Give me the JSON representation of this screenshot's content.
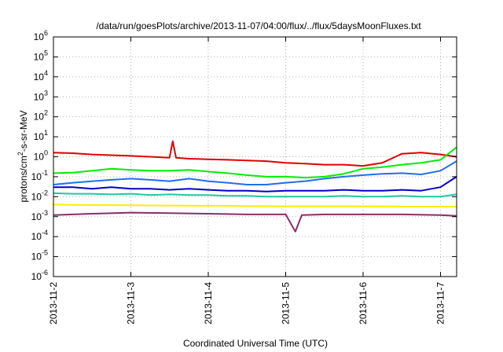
{
  "chart_data": {
    "type": "line",
    "title": "/data/run/goesPlots/archive/2013-11-07/04:00/flux/../flux/5daysMoonFluxes.txt",
    "xlabel": "Coordinated Universal Time (UTC)",
    "ylabel": "protons/cm2-s-sr-MeV",
    "ylabel_parts": {
      "before": "protons/cm",
      "sup": "2",
      "after": "-s-sr-MeV"
    },
    "y_scale": "log",
    "ylim_exp": [
      -6,
      6
    ],
    "y_ticks": [
      {
        "base": "10",
        "exp": "6",
        "value": 6
      },
      {
        "base": "10",
        "exp": "5",
        "value": 5
      },
      {
        "base": "10",
        "exp": "4",
        "value": 4
      },
      {
        "base": "10",
        "exp": "3",
        "value": 3
      },
      {
        "base": "10",
        "exp": "2",
        "value": 2
      },
      {
        "base": "10",
        "exp": "1",
        "value": 1
      },
      {
        "base": "10",
        "exp": "0",
        "value": 0
      },
      {
        "base": "10",
        "exp": "-1",
        "value": -1
      },
      {
        "base": "10",
        "exp": "-2",
        "value": -2
      },
      {
        "base": "10",
        "exp": "-3",
        "value": -3
      },
      {
        "base": "10",
        "exp": "-4",
        "value": -4
      },
      {
        "base": "10",
        "exp": "-5",
        "value": -5
      },
      {
        "base": "10",
        "exp": "-6",
        "value": -6
      }
    ],
    "xlim": [
      "2013-11-02T00:00",
      "2013-11-07T05:00"
    ],
    "x_ticks": [
      "2013-11-2",
      "2013-11-3",
      "2013-11-4",
      "2013-11-5",
      "2013-11-6",
      "2013-11-7"
    ],
    "grid": true,
    "legend": "none",
    "series": [
      {
        "color": "#e00000",
        "points": [
          [
            "2013-11-02T00:00",
            1.6
          ],
          [
            "2013-11-02T06:00",
            1.5
          ],
          [
            "2013-11-02T12:00",
            1.3
          ],
          [
            "2013-11-02T18:00",
            1.2
          ],
          [
            "2013-11-03T00:00",
            1.1
          ],
          [
            "2013-11-03T06:00",
            1.0
          ],
          [
            "2013-11-03T12:00",
            0.9
          ],
          [
            "2013-11-03T13:00",
            6.0
          ],
          [
            "2013-11-03T14:00",
            0.9
          ],
          [
            "2013-11-03T18:00",
            0.8
          ],
          [
            "2013-11-04T00:00",
            0.75
          ],
          [
            "2013-11-04T06:00",
            0.7
          ],
          [
            "2013-11-04T12:00",
            0.65
          ],
          [
            "2013-11-04T18:00",
            0.6
          ],
          [
            "2013-11-05T00:00",
            0.5
          ],
          [
            "2013-11-05T06:00",
            0.45
          ],
          [
            "2013-11-05T12:00",
            0.4
          ],
          [
            "2013-11-05T18:00",
            0.4
          ],
          [
            "2013-11-06T00:00",
            0.35
          ],
          [
            "2013-11-06T06:00",
            0.5
          ],
          [
            "2013-11-06T12:00",
            1.4
          ],
          [
            "2013-11-06T18:00",
            1.6
          ],
          [
            "2013-11-07T00:00",
            1.3
          ],
          [
            "2013-11-07T05:00",
            1.0
          ]
        ]
      },
      {
        "color": "#00ee00",
        "points": [
          [
            "2013-11-02T00:00",
            0.15
          ],
          [
            "2013-11-02T06:00",
            0.16
          ],
          [
            "2013-11-02T12:00",
            0.2
          ],
          [
            "2013-11-02T18:00",
            0.25
          ],
          [
            "2013-11-03T00:00",
            0.22
          ],
          [
            "2013-11-03T06:00",
            0.2
          ],
          [
            "2013-11-03T12:00",
            0.2
          ],
          [
            "2013-11-03T18:00",
            0.22
          ],
          [
            "2013-11-04T00:00",
            0.18
          ],
          [
            "2013-11-04T06:00",
            0.15
          ],
          [
            "2013-11-04T12:00",
            0.12
          ],
          [
            "2013-11-04T18:00",
            0.1
          ],
          [
            "2013-11-05T00:00",
            0.1
          ],
          [
            "2013-11-05T06:00",
            0.09
          ],
          [
            "2013-11-05T12:00",
            0.1
          ],
          [
            "2013-11-05T18:00",
            0.14
          ],
          [
            "2013-11-06T00:00",
            0.25
          ],
          [
            "2013-11-06T06:00",
            0.3
          ],
          [
            "2013-11-06T12:00",
            0.4
          ],
          [
            "2013-11-06T18:00",
            0.5
          ],
          [
            "2013-11-07T00:00",
            0.7
          ],
          [
            "2013-11-07T05:00",
            3.0
          ]
        ]
      },
      {
        "color": "#1e6ef0",
        "points": [
          [
            "2013-11-02T00:00",
            0.04
          ],
          [
            "2013-11-02T06:00",
            0.05
          ],
          [
            "2013-11-02T12:00",
            0.06
          ],
          [
            "2013-11-02T18:00",
            0.07
          ],
          [
            "2013-11-03T00:00",
            0.08
          ],
          [
            "2013-11-03T06:00",
            0.07
          ],
          [
            "2013-11-03T12:00",
            0.06
          ],
          [
            "2013-11-03T18:00",
            0.08
          ],
          [
            "2013-11-04T00:00",
            0.06
          ],
          [
            "2013-11-04T06:00",
            0.05
          ],
          [
            "2013-11-04T12:00",
            0.04
          ],
          [
            "2013-11-04T18:00",
            0.04
          ],
          [
            "2013-11-05T00:00",
            0.05
          ],
          [
            "2013-11-05T06:00",
            0.06
          ],
          [
            "2013-11-05T12:00",
            0.08
          ],
          [
            "2013-11-05T18:00",
            0.1
          ],
          [
            "2013-11-06T00:00",
            0.12
          ],
          [
            "2013-11-06T06:00",
            0.14
          ],
          [
            "2013-11-06T12:00",
            0.15
          ],
          [
            "2013-11-06T18:00",
            0.13
          ],
          [
            "2013-11-07T00:00",
            0.2
          ],
          [
            "2013-11-07T05:00",
            0.6
          ]
        ]
      },
      {
        "color": "#0000cc",
        "points": [
          [
            "2013-11-02T00:00",
            0.03
          ],
          [
            "2013-11-02T06:00",
            0.03
          ],
          [
            "2013-11-02T12:00",
            0.025
          ],
          [
            "2013-11-02T18:00",
            0.03
          ],
          [
            "2013-11-03T00:00",
            0.025
          ],
          [
            "2013-11-03T06:00",
            0.025
          ],
          [
            "2013-11-03T12:00",
            0.022
          ],
          [
            "2013-11-03T18:00",
            0.025
          ],
          [
            "2013-11-04T00:00",
            0.022
          ],
          [
            "2013-11-04T06:00",
            0.02
          ],
          [
            "2013-11-04T12:00",
            0.02
          ],
          [
            "2013-11-04T18:00",
            0.018
          ],
          [
            "2013-11-05T00:00",
            0.02
          ],
          [
            "2013-11-05T06:00",
            0.02
          ],
          [
            "2013-11-05T12:00",
            0.02
          ],
          [
            "2013-11-05T18:00",
            0.022
          ],
          [
            "2013-11-06T00:00",
            0.02
          ],
          [
            "2013-11-06T06:00",
            0.02
          ],
          [
            "2013-11-06T12:00",
            0.022
          ],
          [
            "2013-11-06T18:00",
            0.02
          ],
          [
            "2013-11-07T00:00",
            0.03
          ],
          [
            "2013-11-07T05:00",
            0.1
          ]
        ]
      },
      {
        "color": "#20c8a0",
        "points": [
          [
            "2013-11-02T00:00",
            0.015
          ],
          [
            "2013-11-02T06:00",
            0.014
          ],
          [
            "2013-11-02T12:00",
            0.014
          ],
          [
            "2013-11-02T18:00",
            0.013
          ],
          [
            "2013-11-03T00:00",
            0.014
          ],
          [
            "2013-11-03T06:00",
            0.012
          ],
          [
            "2013-11-03T12:00",
            0.013
          ],
          [
            "2013-11-03T18:00",
            0.012
          ],
          [
            "2013-11-04T00:00",
            0.012
          ],
          [
            "2013-11-04T06:00",
            0.011
          ],
          [
            "2013-11-04T12:00",
            0.011
          ],
          [
            "2013-11-04T18:00",
            0.01
          ],
          [
            "2013-11-05T00:00",
            0.01
          ],
          [
            "2013-11-05T06:00",
            0.01
          ],
          [
            "2013-11-05T12:00",
            0.01
          ],
          [
            "2013-11-05T18:00",
            0.011
          ],
          [
            "2013-11-06T00:00",
            0.01
          ],
          [
            "2013-11-06T06:00",
            0.01
          ],
          [
            "2013-11-06T12:00",
            0.011
          ],
          [
            "2013-11-06T18:00",
            0.01
          ],
          [
            "2013-11-07T00:00",
            0.01
          ],
          [
            "2013-11-07T05:00",
            0.013
          ]
        ]
      },
      {
        "color": "#ffee00",
        "points": [
          [
            "2013-11-02T00:00",
            0.004
          ],
          [
            "2013-11-02T12:00",
            0.0038
          ],
          [
            "2013-11-03T00:00",
            0.0037
          ],
          [
            "2013-11-03T12:00",
            0.0036
          ],
          [
            "2013-11-04T00:00",
            0.0035
          ],
          [
            "2013-11-04T12:00",
            0.0034
          ],
          [
            "2013-11-05T00:00",
            0.0033
          ],
          [
            "2013-11-05T12:00",
            0.0033
          ],
          [
            "2013-11-06T00:00",
            0.0033
          ],
          [
            "2013-11-06T12:00",
            0.0032
          ],
          [
            "2013-11-07T00:00",
            0.0032
          ],
          [
            "2013-11-07T05:00",
            0.0031
          ]
        ]
      },
      {
        "color": "#8b2c6e",
        "points": [
          [
            "2013-11-02T00:00",
            0.0012
          ],
          [
            "2013-11-02T12:00",
            0.0014
          ],
          [
            "2013-11-03T00:00",
            0.0016
          ],
          [
            "2013-11-03T12:00",
            0.0015
          ],
          [
            "2013-11-04T00:00",
            0.0014
          ],
          [
            "2013-11-04T12:00",
            0.0013
          ],
          [
            "2013-11-05T00:00",
            0.0013
          ],
          [
            "2013-11-05T03:00",
            0.00018
          ],
          [
            "2013-11-05T05:00",
            0.0012
          ],
          [
            "2013-11-05T12:00",
            0.0013
          ],
          [
            "2013-11-06T00:00",
            0.0013
          ],
          [
            "2013-11-06T12:00",
            0.0013
          ],
          [
            "2013-11-07T00:00",
            0.0012
          ],
          [
            "2013-11-07T05:00",
            0.0011
          ]
        ]
      }
    ]
  }
}
